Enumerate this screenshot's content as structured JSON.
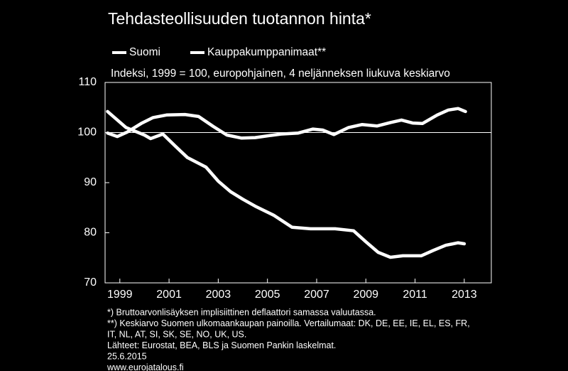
{
  "chart_data": {
    "type": "line",
    "title": "Tehdasteollisuuden tuotannon hinta*",
    "subtitle": "Indeksi, 1999 = 100, europohjainen, 4 neljänneksen liukuva keskiarvo",
    "series": [
      {
        "name": "Suomi",
        "color": "#ffffff",
        "x": [
          1998.5,
          1999.25,
          2000,
          2000.25,
          2000.75,
          2001.25,
          2001.75,
          2002.5,
          2003,
          2003.5,
          2004,
          2004.5,
          2005.25,
          2006,
          2006.75,
          2007.75,
          2008.5,
          2009,
          2009.5,
          2010,
          2010.5,
          2011.25,
          2011.75,
          2012.25,
          2012.75,
          2013
        ],
        "values": [
          104.2,
          101,
          99.5,
          98.8,
          99.7,
          97.3,
          95,
          93.1,
          90.3,
          88.2,
          86.7,
          85.3,
          83.5,
          81.1,
          80.8,
          80.8,
          80.4,
          78.2,
          76.1,
          75.1,
          75.4,
          75.4,
          76.5,
          77.5,
          78,
          77.8
        ]
      },
      {
        "name": "Kauppakumppanimaat**",
        "color": "#ffffff",
        "x": [
          1998.5,
          1998.9,
          1999.3,
          1999.9,
          2000.35,
          2000.9,
          2001.65,
          2002.2,
          2002.8,
          2003.35,
          2003.95,
          2004.5,
          2005.1,
          2005.55,
          2006.25,
          2006.85,
          2007.25,
          2007.7,
          2008.3,
          2008.85,
          2009.45,
          2010,
          2010.45,
          2010.9,
          2011.3,
          2011.9,
          2012.35,
          2012.75,
          2013.05
        ],
        "values": [
          99.9,
          99.2,
          100.1,
          101.9,
          103,
          103.5,
          103.6,
          103.2,
          101.2,
          99.5,
          98.9,
          99,
          99.4,
          99.7,
          99.9,
          100.7,
          100.5,
          99.6,
          101,
          101.6,
          101.3,
          102,
          102.5,
          101.9,
          101.8,
          103.5,
          104.5,
          104.8,
          104.2
        ]
      }
    ],
    "xlim": [
      1998.4,
      2014.1
    ],
    "xticks": [
      1999,
      2001,
      2003,
      2005,
      2007,
      2009,
      2011,
      2013
    ],
    "ylim": [
      70,
      110
    ],
    "yticks": [
      70,
      80,
      90,
      100,
      110
    ],
    "hlines": [
      100
    ],
    "notes": [
      "*) Bruttoarvonlisäyksen  implisiittinen  deflaattori samassa valuutassa.",
      "**) Keskiarvo Suomen ulkomaankaupan  painoilla. Vertailumaat:  DK, DE, EE, IE, EL, ES, FR,",
      "IT, NL, AT, SI, SK, SE, NO, UK, US.",
      "Lähteet:  Eurostat, BEA, BLS ja Suomen Pankin laskelmat.",
      "25.6.2015",
      "www.eurojatalous.fi"
    ]
  }
}
